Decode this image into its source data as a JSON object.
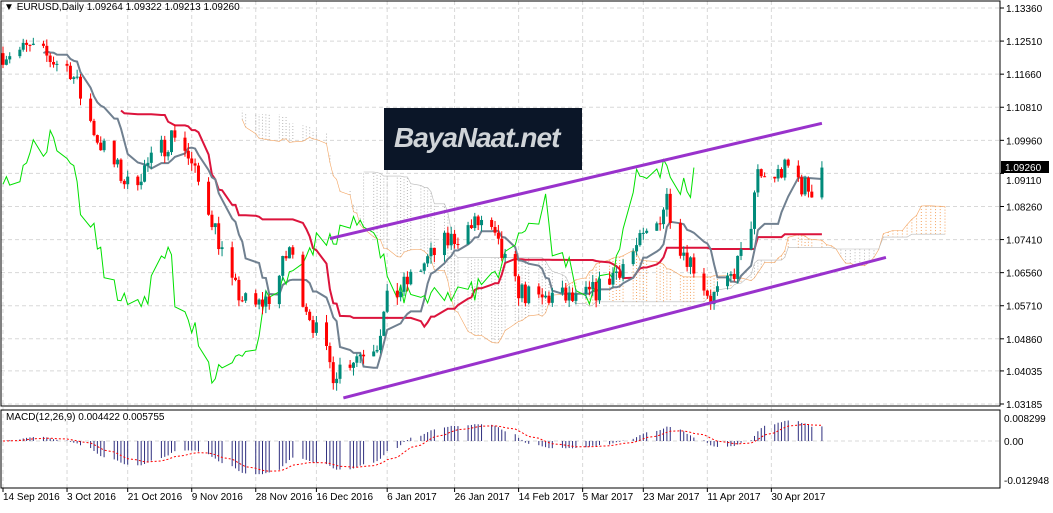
{
  "header": {
    "symbol": "EURUSD,Daily",
    "open": "1.09264",
    "high": "1.09322",
    "low": "1.09213",
    "close": "1.09260"
  },
  "watermark": {
    "text": "BayaNaat.net"
  },
  "current_price_label": "1.09260",
  "macd": {
    "label": "MACD(12,26,9) 0.004422 0.005755",
    "params": [
      12,
      26,
      9
    ]
  },
  "colors": {
    "bull": "#008b7a",
    "bear": "#ff0000",
    "kijun": "#dc143c",
    "tenkan": "#708090",
    "chikou": "#00e000",
    "cloud_up": "#f4a460",
    "cloud_down": "#b8b8b8",
    "channel": "#9932cc",
    "macd_hist": "#2f2f7f",
    "macd_signal": "#ff0000"
  },
  "chart_data": [
    {
      "type": "candlestick",
      "title": "EURUSD,Daily",
      "ylim": [
        1.03185,
        1.1336
      ],
      "y_ticks": [
        "1.13360",
        "1.12510",
        "1.11660",
        "1.10810",
        "1.09960",
        "1.09110",
        "1.08260",
        "1.07410",
        "1.06560",
        "1.05710",
        "1.04860",
        "1.04035",
        "1.03185"
      ],
      "x_ticks": [
        "14 Sep 2016",
        "3 Oct 2016",
        "21 Oct 2016",
        "9 Nov 2016",
        "28 Nov 2016",
        "16 Dec 2016",
        "6 Jan 2017",
        "26 Jan 2017",
        "14 Feb 2017",
        "5 Mar 2017",
        "23 Mar 2017",
        "11 Apr 2017",
        "30 Apr 2017"
      ],
      "x_tick_dates": [
        "2016-09-14",
        "2016-10-03",
        "2016-10-21",
        "2016-11-09",
        "2016-11-28",
        "2016-12-16",
        "2017-01-06",
        "2017-01-26",
        "2017-02-14",
        "2017-03-05",
        "2017-03-23",
        "2017-04-11",
        "2017-04-30"
      ],
      "grid": true,
      "indicators": [
        "Ichimoku(9,26,52)"
      ],
      "close_path": [
        [
          "2016-09-14",
          1.122
        ],
        [
          "2016-09-22",
          1.123
        ],
        [
          "2016-10-04",
          1.118
        ],
        [
          "2016-10-12",
          1.1
        ],
        [
          "2016-10-21",
          1.088
        ],
        [
          "2016-10-29",
          1.095
        ],
        [
          "2016-11-05",
          1.103
        ],
        [
          "2016-11-08",
          1.095
        ],
        [
          "2016-11-15",
          1.08
        ],
        [
          "2016-11-21",
          1.062
        ],
        [
          "2016-11-27",
          1.056
        ],
        [
          "2016-12-03",
          1.06
        ],
        [
          "2016-12-08",
          1.072
        ],
        [
          "2016-12-11",
          1.062
        ],
        [
          "2016-12-17",
          1.048
        ],
        [
          "2016-12-21",
          1.04
        ],
        [
          "2016-12-27",
          1.044
        ],
        [
          "2017-01-03",
          1.048
        ],
        [
          "2017-01-06",
          1.058
        ],
        [
          "2017-01-11",
          1.062
        ],
        [
          "2017-01-17",
          1.068
        ],
        [
          "2017-01-23",
          1.073
        ],
        [
          "2017-01-30",
          1.077
        ],
        [
          "2017-02-04",
          1.079
        ],
        [
          "2017-02-09",
          1.07
        ],
        [
          "2017-02-13",
          1.062
        ],
        [
          "2017-02-19",
          1.058
        ],
        [
          "2017-02-25",
          1.06
        ],
        [
          "2017-03-03",
          1.058
        ],
        [
          "2017-03-09",
          1.061
        ],
        [
          "2017-03-15",
          1.066
        ],
        [
          "2017-03-21",
          1.072
        ],
        [
          "2017-03-27",
          1.078
        ],
        [
          "2017-03-30",
          1.085
        ],
        [
          "2017-04-02",
          1.074
        ],
        [
          "2017-04-08",
          1.066
        ],
        [
          "2017-04-12",
          1.059
        ],
        [
          "2017-04-17",
          1.062
        ],
        [
          "2017-04-20",
          1.068
        ],
        [
          "2017-04-23",
          1.073
        ],
        [
          "2017-04-26",
          1.09
        ],
        [
          "2017-04-30",
          1.09
        ],
        [
          "2017-05-06",
          1.093
        ],
        [
          "2017-05-09",
          1.088
        ],
        [
          "2017-05-12",
          1.087
        ],
        [
          "2017-05-15",
          1.0926
        ]
      ],
      "channel_lines": [
        {
          "from": [
            "2016-12-20",
            1.07436
          ],
          "to": [
            "2017-05-15",
            1.10398
          ]
        },
        {
          "from": [
            "2016-12-24",
            1.0334
          ],
          "to": [
            "2017-06-03",
            1.0695
          ]
        }
      ]
    },
    {
      "type": "bar+line",
      "title": "MACD(12,26,9) 0.004422 0.005755",
      "ylim": [
        -0.012948,
        0.008299
      ],
      "y_ticks": [
        "0.008299",
        "0.00",
        "-0.012948"
      ]
    }
  ]
}
